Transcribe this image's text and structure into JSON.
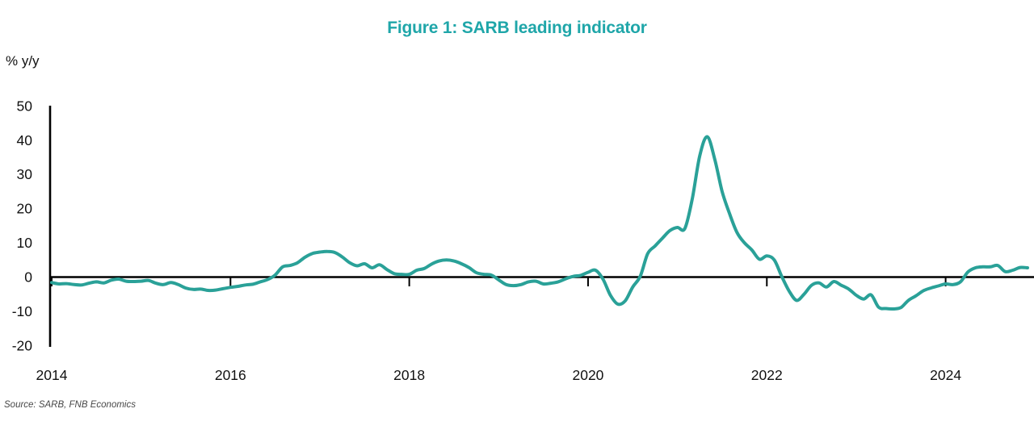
{
  "title": "Figure 1: SARB leading indicator",
  "y_axis_unit": "% y/y",
  "source": "Source: SARB, FNB Economics",
  "colors": {
    "title": "#1fa6a9",
    "line": "#2aa198",
    "axis": "#000000",
    "tick_label": "#111111",
    "source_text": "#474747"
  },
  "chart_data": {
    "type": "line",
    "title": "Figure 1: SARB leading indicator",
    "xlabel": "",
    "ylabel": "% y/y",
    "legend": "none",
    "grid": false,
    "zero_line": true,
    "ylim": [
      -20,
      50
    ],
    "y_ticks": [
      50,
      40,
      30,
      20,
      10,
      0,
      -10,
      -20
    ],
    "x_tick_labels": [
      "2014",
      "2016",
      "2018",
      "2020",
      "2022",
      "2024"
    ],
    "x_tick_years": [
      2014,
      2016,
      2018,
      2020,
      2022,
      2024
    ],
    "series": [
      {
        "name": "SARB leading indicator",
        "unit": "% y/y",
        "start": "2014-01",
        "frequency": "monthly",
        "values": [
          -1.6,
          -2.0,
          -1.9,
          -2.2,
          -2.3,
          -1.8,
          -1.4,
          -1.7,
          -0.9,
          -0.6,
          -1.2,
          -1.3,
          -1.2,
          -1.0,
          -1.8,
          -2.2,
          -1.6,
          -2.2,
          -3.2,
          -3.6,
          -3.5,
          -3.9,
          -3.8,
          -3.4,
          -3.0,
          -2.7,
          -2.3,
          -2.1,
          -1.4,
          -0.7,
          0.6,
          3.0,
          3.4,
          4.2,
          5.8,
          6.9,
          7.3,
          7.5,
          7.2,
          5.9,
          4.2,
          3.3,
          3.9,
          2.7,
          3.6,
          2.2,
          1.0,
          0.8,
          0.8,
          2.0,
          2.5,
          3.8,
          4.7,
          5.0,
          4.7,
          3.9,
          2.8,
          1.3,
          0.8,
          0.6,
          -0.8,
          -2.2,
          -2.5,
          -2.2,
          -1.4,
          -1.2,
          -2.0,
          -1.8,
          -1.4,
          -0.5,
          0.2,
          0.5,
          1.4,
          2.0,
          -0.6,
          -5.3,
          -7.9,
          -6.9,
          -2.9,
          0.2,
          6.8,
          9.1,
          11.4,
          13.6,
          14.5,
          14.2,
          23.0,
          35.5,
          41.0,
          34.5,
          25.0,
          18.5,
          13.0,
          10.0,
          7.9,
          5.2,
          6.2,
          5.0,
          0.2,
          -4.1,
          -6.8,
          -5.0,
          -2.4,
          -1.7,
          -2.9,
          -1.3,
          -2.4,
          -3.5,
          -5.3,
          -6.4,
          -5.2,
          -8.8,
          -9.2,
          -9.3,
          -8.9,
          -6.8,
          -5.5,
          -4.0,
          -3.2,
          -2.6,
          -2.0,
          -2.2,
          -1.4,
          1.5,
          2.7,
          3.0,
          3.0,
          3.4,
          1.6,
          2.0,
          2.8,
          2.7
        ]
      }
    ]
  }
}
